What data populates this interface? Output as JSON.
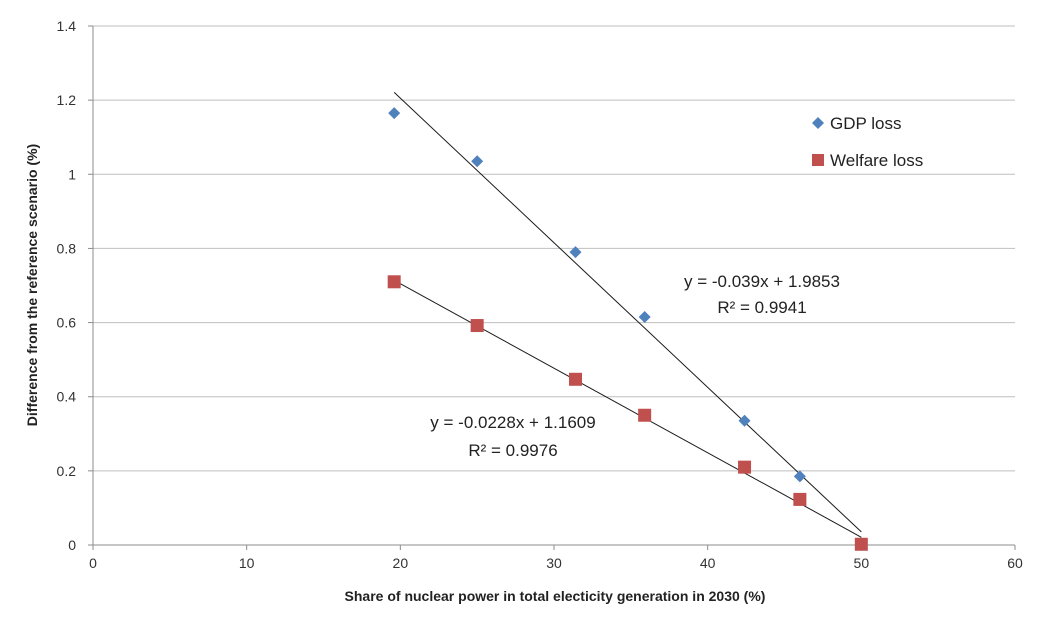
{
  "chart_data": {
    "type": "scatter",
    "xlabel": "Share of nuclear power in total electicity generation in 2030 (%)",
    "ylabel": "Difference from the reference scenario  (%)",
    "xlim": [
      0,
      60
    ],
    "ylim": [
      0,
      1.4
    ],
    "x_ticks": [
      0,
      10,
      20,
      30,
      40,
      50,
      60
    ],
    "y_ticks": [
      0,
      0.2,
      0.4,
      0.6,
      0.8,
      1,
      1.2,
      1.4
    ],
    "grid": "horizontal",
    "legend": "top-right",
    "series": [
      {
        "name": "GDP loss",
        "marker": "diamond",
        "color": "#4f81bd",
        "x": [
          19.6,
          25.0,
          31.4,
          35.9,
          42.4,
          46.0,
          50.0
        ],
        "y": [
          1.165,
          1.035,
          0.79,
          0.615,
          0.335,
          0.185,
          0.0
        ],
        "trendline": {
          "slope": -0.039,
          "intercept": 1.9853,
          "x_range": [
            19.6,
            50.0
          ],
          "equation": "y = -0.039x + 1.9853",
          "r2": "R² = 0.9941"
        }
      },
      {
        "name": "Welfare loss",
        "marker": "square",
        "color": "#c0504d",
        "x": [
          19.6,
          25.0,
          31.4,
          35.9,
          42.4,
          46.0,
          50.0
        ],
        "y": [
          0.71,
          0.592,
          0.447,
          0.35,
          0.21,
          0.123,
          0.002
        ],
        "trendline": {
          "slope": -0.0228,
          "intercept": 1.1609,
          "x_range": [
            19.6,
            50.0
          ],
          "equation": "y = -0.0228x + 1.1609",
          "r2": "R² = 0.9976"
        }
      }
    ]
  }
}
